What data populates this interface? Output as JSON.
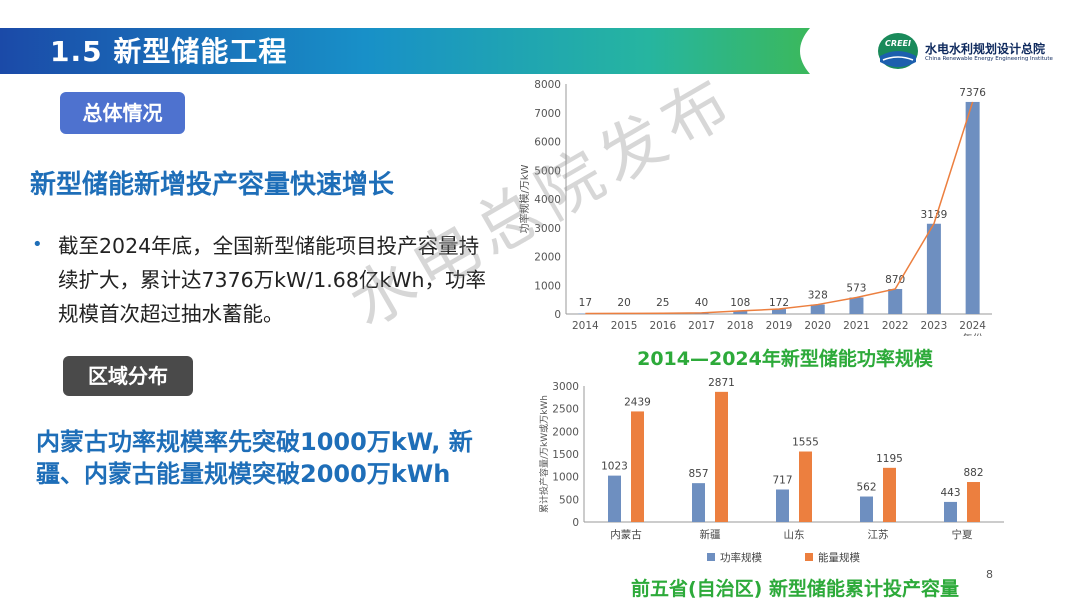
{
  "header": {
    "section_title": "1.5 新型储能工程",
    "org_logo_text": "CREEI",
    "org_name": "水电水利规划设计总院",
    "org_name_en": "China Renewable Energy Engineering Institute"
  },
  "left": {
    "overview_label": "总体情况",
    "headline": "新型储能新增投产容量快速增长",
    "bullet": "截至2024年底，全国新型储能项目投产容量持续扩大，累计达7376万kW/1.68亿kWh，功率规模首次超过抽水蓄能。",
    "region_label": "区域分布",
    "region_text": "内蒙古功率规模率先突破1000万kW, 新疆、内蒙古能量规模突破2000万kWh"
  },
  "watermark": "水电总院发布",
  "page_number": "8",
  "colors": {
    "header_gradient": [
      "#1b4aa8",
      "#1890c8",
      "#26b5a0",
      "#3bb85c"
    ],
    "accent_blue": "#1e6eb8",
    "title_green": "#2daa3a",
    "bar_blue": "#6e8fc0",
    "bar_orange": "#ec7f3f",
    "line_orange": "#ec7f3f"
  },
  "chart_data": [
    {
      "type": "bar",
      "title": "2014—2024年新型储能功率规模",
      "xlabel": "年份",
      "ylabel": "功率规模/万kW",
      "categories": [
        "2014",
        "2015",
        "2016",
        "2017",
        "2018",
        "2019",
        "2020",
        "2021",
        "2022",
        "2023",
        "2024"
      ],
      "values": [
        17,
        20,
        25,
        40,
        108,
        172,
        328,
        573,
        870,
        3139,
        7376
      ],
      "overlay": "line",
      "ylim": [
        0,
        8000
      ],
      "yticks": [
        0,
        1000,
        2000,
        3000,
        4000,
        5000,
        6000,
        7000,
        8000
      ]
    },
    {
      "type": "bar",
      "title": "前五省(自治区) 新型储能累计投产容量",
      "ylabel": "累计投产容量/万kW或万kWh",
      "categories": [
        "内蒙古",
        "新疆",
        "山东",
        "江苏",
        "宁夏"
      ],
      "series": [
        {
          "name": "功率规模",
          "values": [
            1023,
            857,
            717,
            562,
            443
          ]
        },
        {
          "name": "能量规模",
          "values": [
            2439,
            2871,
            1555,
            1195,
            882
          ]
        }
      ],
      "ylim": [
        0,
        3000
      ],
      "yticks": [
        0,
        500,
        1000,
        1500,
        2000,
        2500,
        3000
      ],
      "legend": "bottom"
    }
  ]
}
